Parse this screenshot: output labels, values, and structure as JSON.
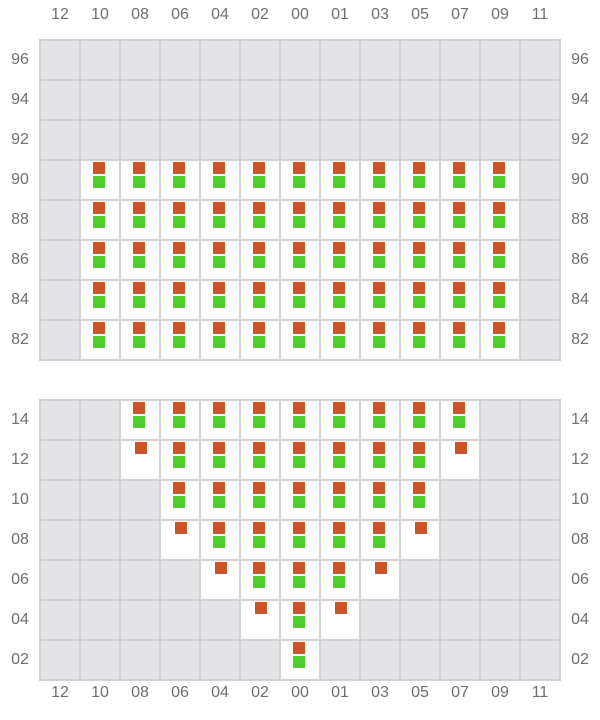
{
  "columns": [
    "12",
    "10",
    "08",
    "06",
    "04",
    "02",
    "00",
    "01",
    "03",
    "05",
    "07",
    "09",
    "11"
  ],
  "colors": {
    "active_cell": "#ffffff",
    "inactive_cell": "#e4e4e7",
    "red_marker": "#cf5229",
    "green_marker": "#50ce2b",
    "grid_line": "#d3d3d7"
  },
  "legend_states": {
    "off": "inactive cell",
    "both": "red and green markers",
    "red": "red marker only"
  },
  "top_section": {
    "rows": [
      {
        "label": "96",
        "cells": [
          "off",
          "off",
          "off",
          "off",
          "off",
          "off",
          "off",
          "off",
          "off",
          "off",
          "off",
          "off",
          "off"
        ]
      },
      {
        "label": "94",
        "cells": [
          "off",
          "off",
          "off",
          "off",
          "off",
          "off",
          "off",
          "off",
          "off",
          "off",
          "off",
          "off",
          "off"
        ]
      },
      {
        "label": "92",
        "cells": [
          "off",
          "off",
          "off",
          "off",
          "off",
          "off",
          "off",
          "off",
          "off",
          "off",
          "off",
          "off",
          "off"
        ]
      },
      {
        "label": "90",
        "cells": [
          "off",
          "both",
          "both",
          "both",
          "both",
          "both",
          "both",
          "both",
          "both",
          "both",
          "both",
          "both",
          "off"
        ]
      },
      {
        "label": "88",
        "cells": [
          "off",
          "both",
          "both",
          "both",
          "both",
          "both",
          "both",
          "both",
          "both",
          "both",
          "both",
          "both",
          "off"
        ]
      },
      {
        "label": "86",
        "cells": [
          "off",
          "both",
          "both",
          "both",
          "both",
          "both",
          "both",
          "both",
          "both",
          "both",
          "both",
          "both",
          "off"
        ]
      },
      {
        "label": "84",
        "cells": [
          "off",
          "both",
          "both",
          "both",
          "both",
          "both",
          "both",
          "both",
          "both",
          "both",
          "both",
          "both",
          "off"
        ]
      },
      {
        "label": "82",
        "cells": [
          "off",
          "both",
          "both",
          "both",
          "both",
          "both",
          "both",
          "both",
          "both",
          "both",
          "both",
          "both",
          "off"
        ]
      }
    ]
  },
  "bottom_section": {
    "rows": [
      {
        "label": "14",
        "cells": [
          "off",
          "off",
          "both",
          "both",
          "both",
          "both",
          "both",
          "both",
          "both",
          "both",
          "both",
          "off",
          "off"
        ]
      },
      {
        "label": "12",
        "cells": [
          "off",
          "off",
          "red",
          "both",
          "both",
          "both",
          "both",
          "both",
          "both",
          "both",
          "red",
          "off",
          "off"
        ]
      },
      {
        "label": "10",
        "cells": [
          "off",
          "off",
          "off",
          "both",
          "both",
          "both",
          "both",
          "both",
          "both",
          "both",
          "off",
          "off",
          "off"
        ]
      },
      {
        "label": "08",
        "cells": [
          "off",
          "off",
          "off",
          "red",
          "both",
          "both",
          "both",
          "both",
          "both",
          "red",
          "off",
          "off",
          "off"
        ]
      },
      {
        "label": "06",
        "cells": [
          "off",
          "off",
          "off",
          "off",
          "red",
          "both",
          "both",
          "both",
          "red",
          "off",
          "off",
          "off",
          "off"
        ]
      },
      {
        "label": "04",
        "cells": [
          "off",
          "off",
          "off",
          "off",
          "off",
          "red",
          "both",
          "red",
          "off",
          "off",
          "off",
          "off",
          "off"
        ]
      },
      {
        "label": "02",
        "cells": [
          "off",
          "off",
          "off",
          "off",
          "off",
          "off",
          "both",
          "off",
          "off",
          "off",
          "off",
          "off",
          "off"
        ]
      }
    ]
  }
}
